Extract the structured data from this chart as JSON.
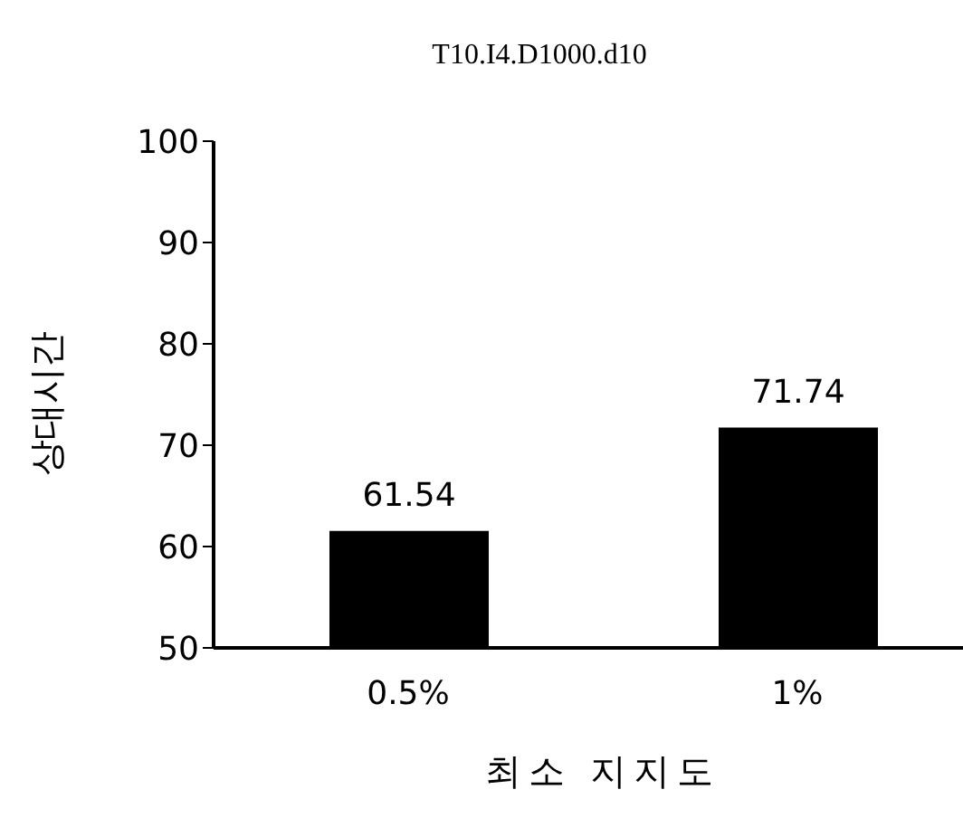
{
  "chart_data": {
    "type": "bar",
    "title": "T10.I4.D1000.d10",
    "xlabel": "최소 지지도",
    "ylabel": "상대시간",
    "categories": [
      "0.5%",
      "1%"
    ],
    "values": [
      61.54,
      71.74
    ],
    "color": "#000000",
    "ylim": [
      50,
      100
    ],
    "yticks": [
      50,
      60,
      70,
      80,
      90,
      100
    ],
    "grid": false,
    "data_labels": true
  }
}
